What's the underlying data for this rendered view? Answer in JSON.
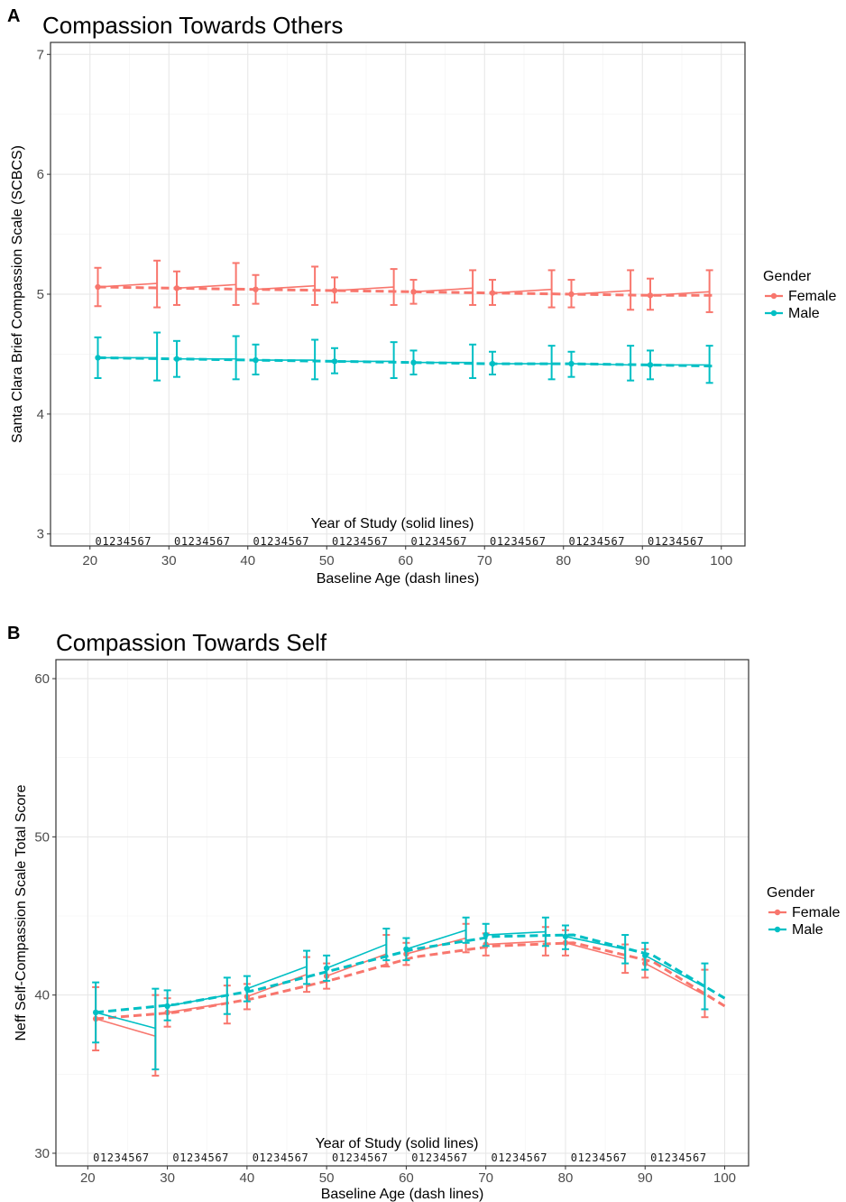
{
  "chart_data": [
    {
      "panel": "A",
      "type": "line",
      "title": "Compassion Towards Others",
      "xlabel": "Baseline Age (dash lines)",
      "x2label": "Year of Study (solid lines)",
      "ylabel": "Santa Clara Brief Compassion Scale (SCBCS)",
      "xlim": [
        15,
        103
      ],
      "ylim": [
        2.9,
        7.1
      ],
      "x_ticks": [
        20,
        30,
        40,
        50,
        60,
        70,
        80,
        90,
        100
      ],
      "y_ticks": [
        3,
        4,
        5,
        6,
        7
      ],
      "grid": true,
      "year_labels": [
        "01234567",
        "01234567",
        "01234567",
        "01234567",
        "01234567",
        "01234567",
        "01234567",
        "01234567"
      ],
      "year_label_starts": [
        21,
        31,
        41,
        51,
        61,
        71,
        81,
        91
      ],
      "legend": {
        "title": "Gender",
        "position": "right",
        "items": [
          "Female",
          "Male"
        ]
      },
      "series": [
        {
          "name": "Female",
          "color": "#F8766D",
          "dashed": {
            "x": [
              21,
              31,
              41,
              51,
              61,
              71,
              81,
              91,
              99
            ],
            "y": [
              5.06,
              5.05,
              5.04,
              5.03,
              5.02,
              5.01,
              5.0,
              4.99,
              4.99
            ]
          },
          "segments": [
            {
              "start": [
                21,
                5.06
              ],
              "end": [
                28.5,
                5.09
              ],
              "err_start": [
                4.9,
                5.22
              ],
              "err_end": [
                4.89,
                5.28
              ]
            },
            {
              "start": [
                31,
                5.05
              ],
              "end": [
                38.5,
                5.08
              ],
              "err_start": [
                4.91,
                5.19
              ],
              "err_end": [
                4.91,
                5.26
              ]
            },
            {
              "start": [
                41,
                5.04
              ],
              "end": [
                48.5,
                5.07
              ],
              "err_start": [
                4.92,
                5.16
              ],
              "err_end": [
                4.91,
                5.23
              ]
            },
            {
              "start": [
                51,
                5.03
              ],
              "end": [
                58.5,
                5.06
              ],
              "err_start": [
                4.93,
                5.14
              ],
              "err_end": [
                4.91,
                5.21
              ]
            },
            {
              "start": [
                61,
                5.02
              ],
              "end": [
                68.5,
                5.05
              ],
              "err_start": [
                4.92,
                5.12
              ],
              "err_end": [
                4.91,
                5.2
              ]
            },
            {
              "start": [
                71,
                5.01
              ],
              "end": [
                78.5,
                5.04
              ],
              "err_start": [
                4.91,
                5.12
              ],
              "err_end": [
                4.89,
                5.2
              ]
            },
            {
              "start": [
                81,
                5.0
              ],
              "end": [
                88.5,
                5.03
              ],
              "err_start": [
                4.89,
                5.12
              ],
              "err_end": [
                4.87,
                5.2
              ]
            },
            {
              "start": [
                91,
                4.99
              ],
              "end": [
                98.5,
                5.02
              ],
              "err_start": [
                4.87,
                5.13
              ],
              "err_end": [
                4.85,
                5.2
              ]
            }
          ]
        },
        {
          "name": "Male",
          "color": "#00BFC4",
          "dashed": {
            "x": [
              21,
              31,
              41,
              51,
              61,
              71,
              81,
              91,
              99
            ],
            "y": [
              4.47,
              4.46,
              4.45,
              4.44,
              4.43,
              4.42,
              4.42,
              4.41,
              4.4
            ]
          },
          "segments": [
            {
              "start": [
                21,
                4.47
              ],
              "end": [
                28.5,
                4.47
              ],
              "err_start": [
                4.3,
                4.64
              ],
              "err_end": [
                4.28,
                4.68
              ]
            },
            {
              "start": [
                31,
                4.46
              ],
              "end": [
                38.5,
                4.46
              ],
              "err_start": [
                4.31,
                4.61
              ],
              "err_end": [
                4.29,
                4.65
              ]
            },
            {
              "start": [
                41,
                4.45
              ],
              "end": [
                48.5,
                4.45
              ],
              "err_start": [
                4.33,
                4.58
              ],
              "err_end": [
                4.29,
                4.62
              ]
            },
            {
              "start": [
                51,
                4.44
              ],
              "end": [
                58.5,
                4.44
              ],
              "err_start": [
                4.34,
                4.55
              ],
              "err_end": [
                4.3,
                4.6
              ]
            },
            {
              "start": [
                61,
                4.43
              ],
              "end": [
                68.5,
                4.43
              ],
              "err_start": [
                4.33,
                4.53
              ],
              "err_end": [
                4.3,
                4.58
              ]
            },
            {
              "start": [
                71,
                4.42
              ],
              "end": [
                78.5,
                4.42
              ],
              "err_start": [
                4.33,
                4.52
              ],
              "err_end": [
                4.29,
                4.57
              ]
            },
            {
              "start": [
                81,
                4.42
              ],
              "end": [
                88.5,
                4.41
              ],
              "err_start": [
                4.31,
                4.52
              ],
              "err_end": [
                4.28,
                4.57
              ]
            },
            {
              "start": [
                91,
                4.41
              ],
              "end": [
                98.5,
                4.41
              ],
              "err_start": [
                4.29,
                4.53
              ],
              "err_end": [
                4.26,
                4.57
              ]
            }
          ]
        }
      ]
    },
    {
      "panel": "B",
      "type": "line",
      "title": "Compassion Towards Self",
      "xlabel": "Baseline Age (dash lines)",
      "x2label": "Year of Study (solid lines)",
      "ylabel": "Neff Self-Compassion Scale Total Score",
      "xlim": [
        16,
        103
      ],
      "ylim": [
        29.2,
        61.2
      ],
      "x_ticks": [
        20,
        30,
        40,
        50,
        60,
        70,
        80,
        90,
        100
      ],
      "y_ticks": [
        30,
        40,
        50,
        60
      ],
      "grid": true,
      "year_labels": [
        "01234567",
        "01234567",
        "01234567",
        "01234567",
        "01234567",
        "01234567",
        "01234567",
        "01234567"
      ],
      "year_label_starts": [
        21,
        31,
        41,
        51,
        61,
        71,
        81,
        91
      ],
      "legend": {
        "title": "Gender",
        "position": "right",
        "items": [
          "Female",
          "Male"
        ]
      },
      "series": [
        {
          "name": "Female",
          "color": "#F8766D",
          "dashed": {
            "x": [
              21,
              31,
              41,
              51,
              61,
              71,
              81,
              91,
              100
            ],
            "y": [
              38.5,
              38.9,
              39.8,
              41.0,
              42.4,
              43.1,
              43.3,
              42.1,
              39.3
            ]
          },
          "segments": [
            {
              "start": [
                21,
                38.5
              ],
              "end": [
                28.5,
                37.4
              ],
              "err_start": [
                36.5,
                40.5
              ],
              "err_end": [
                34.9,
                40.0
              ]
            },
            {
              "start": [
                30,
                38.9
              ],
              "end": [
                37.5,
                39.5
              ],
              "err_start": [
                38.0,
                39.8
              ],
              "err_end": [
                38.2,
                40.6
              ]
            },
            {
              "start": [
                40,
                39.9
              ],
              "end": [
                47.5,
                41.3
              ],
              "err_start": [
                39.1,
                40.7
              ],
              "err_end": [
                40.2,
                42.4
              ]
            },
            {
              "start": [
                50,
                41.2
              ],
              "end": [
                57.5,
                42.6
              ],
              "err_start": [
                40.4,
                42.0
              ],
              "err_end": [
                41.8,
                43.8
              ]
            },
            {
              "start": [
                60,
                42.6
              ],
              "end": [
                67.5,
                43.6
              ],
              "err_start": [
                41.9,
                43.3
              ],
              "err_end": [
                42.7,
                44.5
              ]
            },
            {
              "start": [
                70,
                43.2
              ],
              "end": [
                77.5,
                43.4
              ],
              "err_start": [
                42.5,
                43.9
              ],
              "err_end": [
                42.5,
                44.3
              ]
            },
            {
              "start": [
                80,
                43.3
              ],
              "end": [
                87.5,
                42.3
              ],
              "err_start": [
                42.5,
                44.1
              ],
              "err_end": [
                41.4,
                43.2
              ]
            },
            {
              "start": [
                90,
                42.0
              ],
              "end": [
                97.5,
                40.0
              ],
              "err_start": [
                41.1,
                42.9
              ],
              "err_end": [
                38.6,
                41.6
              ]
            }
          ]
        },
        {
          "name": "Male",
          "color": "#00BFC4",
          "dashed": {
            "x": [
              21,
              31,
              41,
              51,
              61,
              71,
              81,
              91,
              100
            ],
            "y": [
              38.9,
              39.4,
              40.3,
              41.6,
              42.9,
              43.7,
              43.8,
              42.5,
              39.8
            ]
          },
          "segments": [
            {
              "start": [
                21,
                38.9
              ],
              "end": [
                28.5,
                37.9
              ],
              "err_start": [
                37.0,
                40.8
              ],
              "err_end": [
                35.3,
                40.4
              ]
            },
            {
              "start": [
                30,
                39.3
              ],
              "end": [
                37.5,
                40.0
              ],
              "err_start": [
                38.4,
                40.3
              ],
              "err_end": [
                38.8,
                41.1
              ]
            },
            {
              "start": [
                40,
                40.4
              ],
              "end": [
                47.5,
                41.8
              ],
              "err_start": [
                39.6,
                41.2
              ],
              "err_end": [
                40.7,
                42.8
              ]
            },
            {
              "start": [
                50,
                41.7
              ],
              "end": [
                57.5,
                43.2
              ],
              "err_start": [
                40.9,
                42.5
              ],
              "err_end": [
                42.2,
                44.2
              ]
            },
            {
              "start": [
                60,
                42.9
              ],
              "end": [
                67.5,
                44.1
              ],
              "err_start": [
                42.2,
                43.6
              ],
              "err_end": [
                43.3,
                44.9
              ]
            },
            {
              "start": [
                70,
                43.8
              ],
              "end": [
                77.5,
                44.0
              ],
              "err_start": [
                43.1,
                44.5
              ],
              "err_end": [
                43.1,
                44.9
              ]
            },
            {
              "start": [
                80,
                43.7
              ],
              "end": [
                87.5,
                42.9
              ],
              "err_start": [
                42.9,
                44.4
              ],
              "err_end": [
                42.0,
                43.8
              ]
            },
            {
              "start": [
                90,
                42.5
              ],
              "end": [
                97.5,
                40.5
              ],
              "err_start": [
                41.6,
                43.3
              ],
              "err_end": [
                39.1,
                42.0
              ]
            }
          ]
        }
      ]
    }
  ]
}
